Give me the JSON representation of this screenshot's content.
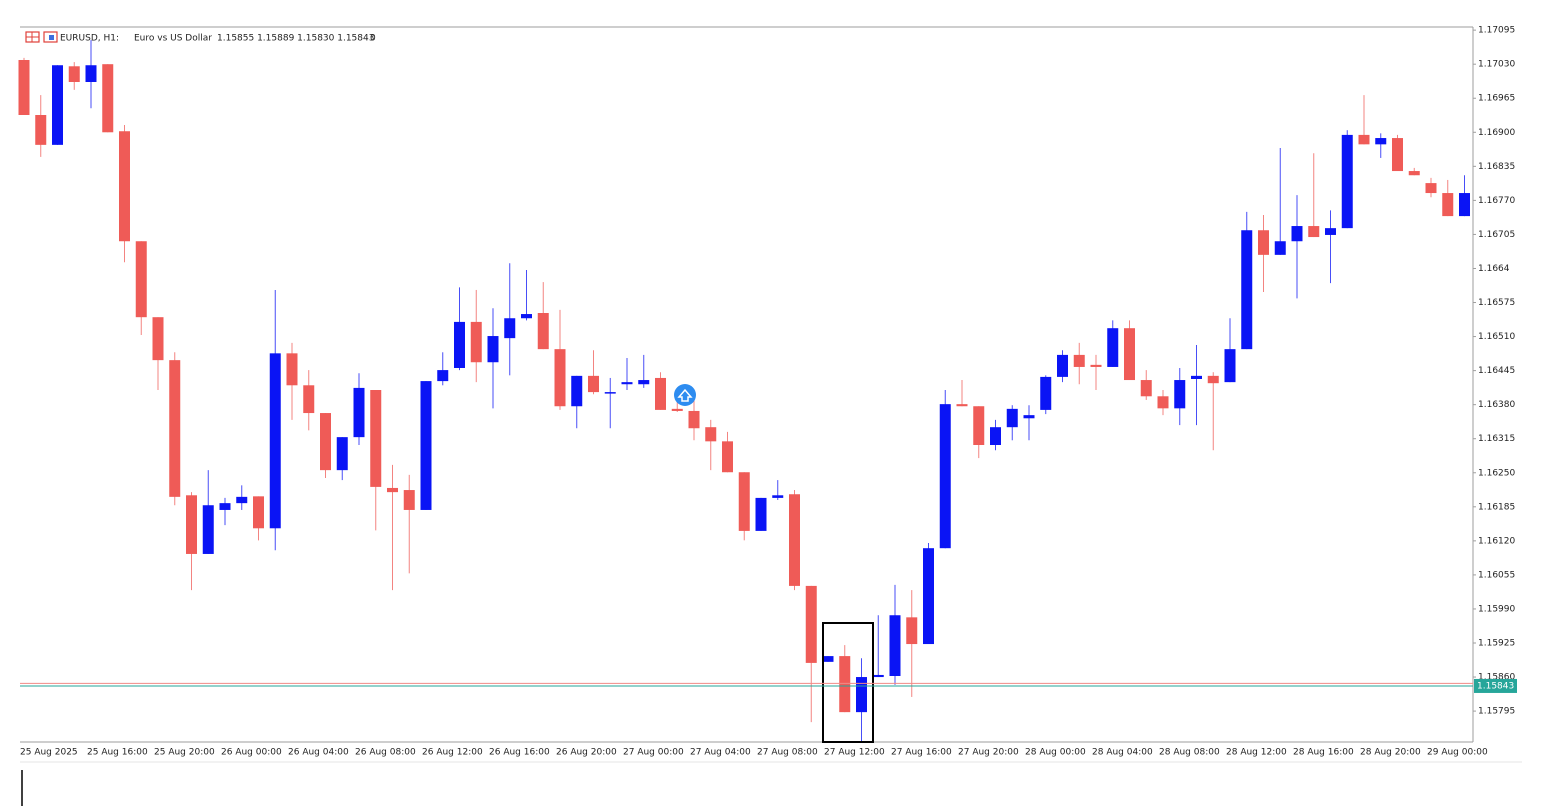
{
  "chart_data": {
    "type": "candlestick",
    "header": [
      "EURUSD, H1:",
      "Euro vs US Dollar",
      "1.15855 1.15889 1.15830 1.15843",
      "0"
    ],
    "categories": [
      "25 Aug 2025",
      null,
      null,
      null,
      "25 Aug 16:00",
      null,
      null,
      null,
      "25 Aug 20:00",
      null,
      null,
      null,
      "26 Aug 00:00",
      null,
      null,
      null,
      "26 Aug 04:00",
      null,
      null,
      null,
      "26 Aug 08:00",
      null,
      null,
      null,
      "26 Aug 12:00",
      null,
      null,
      null,
      "26 Aug 16:00",
      null,
      null,
      null,
      "26 Aug 20:00",
      null,
      null,
      null,
      "27 Aug 00:00",
      null,
      null,
      null,
      "27 Aug 04:00",
      null,
      null,
      null,
      "27 Aug 08:00",
      null,
      null,
      null,
      "27 Aug 12:00",
      null,
      null,
      null,
      "27 Aug 16:00",
      null,
      null,
      null,
      "27 Aug 20:00",
      null,
      null,
      null,
      "28 Aug 00:00",
      null,
      null,
      null,
      "28 Aug 04:00",
      null,
      null,
      null,
      "28 Aug 08:00",
      null,
      null,
      null,
      "28 Aug 12:00",
      null,
      null,
      null,
      "28 Aug 16:00",
      null,
      null,
      null,
      "28 Aug 20:00",
      null,
      null,
      null,
      "29 Aug 00:00",
      null,
      null
    ],
    "open": [
      1.17038,
      1.16933,
      1.16876,
      1.17026,
      1.16996,
      1.1703,
      1.16902,
      1.16692,
      1.16547,
      1.16465,
      1.16207,
      1.16095,
      1.16179,
      1.16192,
      1.16205,
      1.16144,
      1.16478,
      1.16417,
      1.16364,
      1.16255,
      1.16318,
      1.16408,
      1.16221,
      1.16217,
      1.16179,
      1.16425,
      1.1645,
      1.16538,
      1.16461,
      1.16507,
      1.16545,
      1.16555,
      1.16486,
      1.16377,
      1.16435,
      1.16402,
      1.16419,
      1.16419,
      1.16431,
      1.16372,
      1.16368,
      1.16337,
      1.1631,
      1.16251,
      1.16139,
      1.16202,
      1.16209,
      1.16034,
      1.15889,
      1.159,
      1.15793,
      1.1586,
      1.15862,
      1.15974,
      1.15923,
      1.16106,
      1.16381,
      1.16377,
      1.16303,
      1.16337,
      1.16354,
      1.1637,
      1.16433,
      1.16475,
      1.16456,
      1.16452,
      1.16526,
      1.16427,
      1.16396,
      1.16373,
      1.16429,
      1.16435,
      1.16423,
      1.16486,
      1.16713,
      1.16666,
      1.16692,
      1.16721,
      1.16704,
      1.16717,
      1.16895,
      1.16877,
      1.16889,
      1.16826,
      1.16803,
      1.16784,
      1.1674
    ],
    "high": [
      1.17042,
      1.16971,
      1.17028,
      1.17034,
      1.17076,
      1.1703,
      1.16914,
      1.16692,
      1.16547,
      1.1648,
      1.16213,
      1.16255,
      1.16202,
      1.16226,
      1.16205,
      1.16599,
      1.16498,
      1.16446,
      1.16364,
      1.16318,
      1.1644,
      1.16408,
      1.16265,
      1.16246,
      1.16425,
      1.1648,
      1.16604,
      1.16599,
      1.16564,
      1.1665,
      1.16637,
      1.16614,
      1.16561,
      1.16435,
      1.16484,
      1.16431,
      1.16469,
      1.16475,
      1.16442,
      1.16398,
      1.16393,
      1.16351,
      1.16328,
      1.16251,
      1.16202,
      1.16236,
      1.16217,
      1.16034,
      1.159,
      1.15921,
      1.15896,
      1.15978,
      1.16036,
      1.16026,
      1.16116,
      1.16408,
      1.16427,
      1.16377,
      1.16351,
      1.16379,
      1.16379,
      1.16436,
      1.16484,
      1.16498,
      1.16475,
      1.16541,
      1.16541,
      1.16446,
      1.16408,
      1.1645,
      1.16494,
      1.16442,
      1.16545,
      1.16748,
      1.16742,
      1.1687,
      1.1678,
      1.1686,
      1.16751,
      1.16904,
      1.16971,
      1.16898,
      1.16895,
      1.16832,
      1.16813,
      1.16809,
      1.16818
    ],
    "low": [
      1.16933,
      1.16853,
      1.16876,
      1.16981,
      1.16946,
      1.169,
      1.16652,
      1.16513,
      1.16408,
      1.16188,
      1.16026,
      1.16095,
      1.1615,
      1.16179,
      1.16121,
      1.16102,
      1.16351,
      1.16331,
      1.1624,
      1.16236,
      1.16303,
      1.1614,
      1.16026,
      1.16058,
      1.16179,
      1.16417,
      1.16446,
      1.16423,
      1.16373,
      1.16436,
      1.16541,
      1.16486,
      1.1637,
      1.16335,
      1.164,
      1.16335,
      1.16408,
      1.16412,
      1.1637,
      1.16366,
      1.16312,
      1.16255,
      1.16251,
      1.16121,
      1.16139,
      1.16198,
      1.16026,
      1.15774,
      1.15889,
      1.15793,
      1.15738,
      1.1586,
      1.15845,
      1.15822,
      1.15923,
      1.16106,
      1.16377,
      1.16278,
      1.16293,
      1.16312,
      1.16312,
      1.16362,
      1.16423,
      1.16419,
      1.16408,
      1.16452,
      1.16427,
      1.16389,
      1.1636,
      1.16341,
      1.16341,
      1.16293,
      1.16423,
      1.16486,
      1.16595,
      1.16666,
      1.16583,
      1.167,
      1.16612,
      1.16717,
      1.16877,
      1.16851,
      1.16826,
      1.16818,
      1.16776,
      1.1674,
      1.1674
    ],
    "close": [
      1.16933,
      1.16876,
      1.17028,
      1.16996,
      1.17028,
      1.169,
      1.16692,
      1.16547,
      1.16465,
      1.16204,
      1.16095,
      1.16188,
      1.16192,
      1.16204,
      1.16144,
      1.16478,
      1.16417,
      1.16364,
      1.16255,
      1.16318,
      1.16412,
      1.16223,
      1.16213,
      1.16179,
      1.16425,
      1.16446,
      1.16538,
      1.16461,
      1.16511,
      1.16545,
      1.16553,
      1.16486,
      1.16377,
      1.16435,
      1.16404,
      1.16404,
      1.16423,
      1.16427,
      1.1637,
      1.16368,
      1.16335,
      1.1631,
      1.16251,
      1.16139,
      1.16202,
      1.16207,
      1.16034,
      1.15887,
      1.159,
      1.15793,
      1.1586,
      1.15864,
      1.15978,
      1.15923,
      1.16106,
      1.16381,
      1.16377,
      1.16303,
      1.16337,
      1.16372,
      1.1636,
      1.16433,
      1.16475,
      1.16452,
      1.16452,
      1.16526,
      1.16427,
      1.16396,
      1.16373,
      1.16427,
      1.16435,
      1.16421,
      1.16486,
      1.16713,
      1.16666,
      1.16692,
      1.16721,
      1.167,
      1.16717,
      1.16895,
      1.16877,
      1.16889,
      1.16826,
      1.16818,
      1.16784,
      1.1674,
      1.16784
    ],
    "up_color": "#0a14f5",
    "down_color": "#ef5b57",
    "ylim": [
      1.15736,
      1.17101
    ],
    "yticks": [
      1.17095,
      {
        "value": 1.1703,
        "label": "1.17030"
      },
      1.16965,
      {
        "value": 1.169,
        "label": "1.16900"
      },
      1.16835,
      {
        "value": 1.1677,
        "label": "1.16770"
      },
      1.16705,
      1.1664,
      1.16575,
      {
        "value": 1.1651,
        "label": "1.16510"
      },
      1.16445,
      {
        "value": 1.1638,
        "label": "1.16380"
      },
      1.16315,
      {
        "value": 1.1625,
        "label": "1.16250"
      },
      1.16185,
      {
        "value": 1.1612,
        "label": "1.16120"
      },
      1.16055,
      {
        "value": 1.1599,
        "label": "1.15990"
      },
      1.15925,
      {
        "value": 1.1586,
        "label": "1.15860"
      },
      1.15795
    ],
    "ask_line": 1.15848,
    "last_price": 1.15843,
    "ask_color": "#f08a86",
    "last_color": "#26a69a"
  }
}
